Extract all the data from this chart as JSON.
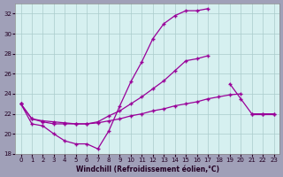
{
  "xlabel": "Windchill (Refroidissement éolien,°C)",
  "x": [
    0,
    1,
    2,
    3,
    4,
    5,
    6,
    7,
    8,
    9,
    10,
    11,
    12,
    13,
    14,
    15,
    16,
    17,
    18,
    19,
    20,
    21,
    22,
    23
  ],
  "curve1": [
    23,
    21,
    20.8,
    20,
    19.3,
    19,
    19,
    18.5,
    20.3,
    22.8,
    25.2,
    27.2,
    29.5,
    31.0,
    31.8,
    32.3,
    32.3,
    32.5,
    null,
    null,
    null,
    null,
    null,
    null
  ],
  "curve2": [
    23,
    21.5,
    21.2,
    21,
    21,
    21,
    21,
    21.2,
    21.8,
    22.3,
    23,
    23.7,
    24.5,
    25.3,
    26.3,
    27.3,
    27.5,
    27.8,
    null,
    25,
    23.5,
    22,
    22,
    22
  ],
  "curve3": [
    23,
    21.5,
    21.3,
    21.2,
    21.1,
    21.0,
    21.0,
    21.1,
    21.3,
    21.5,
    21.8,
    22.0,
    22.3,
    22.5,
    22.8,
    23.0,
    23.2,
    23.5,
    23.7,
    23.9,
    24.0,
    22,
    22,
    22
  ],
  "ylim": [
    18,
    33
  ],
  "xlim": [
    -0.5,
    23.5
  ],
  "yticks": [
    18,
    20,
    22,
    24,
    26,
    28,
    30,
    32
  ],
  "xticks": [
    0,
    1,
    2,
    3,
    4,
    5,
    6,
    7,
    8,
    9,
    10,
    11,
    12,
    13,
    14,
    15,
    16,
    17,
    18,
    19,
    20,
    21,
    22,
    23
  ],
  "line_color": "#990099",
  "bg_color": "#d6f0f0",
  "grid_color": "#aacccc",
  "fig_bg": "#a0a0b8"
}
